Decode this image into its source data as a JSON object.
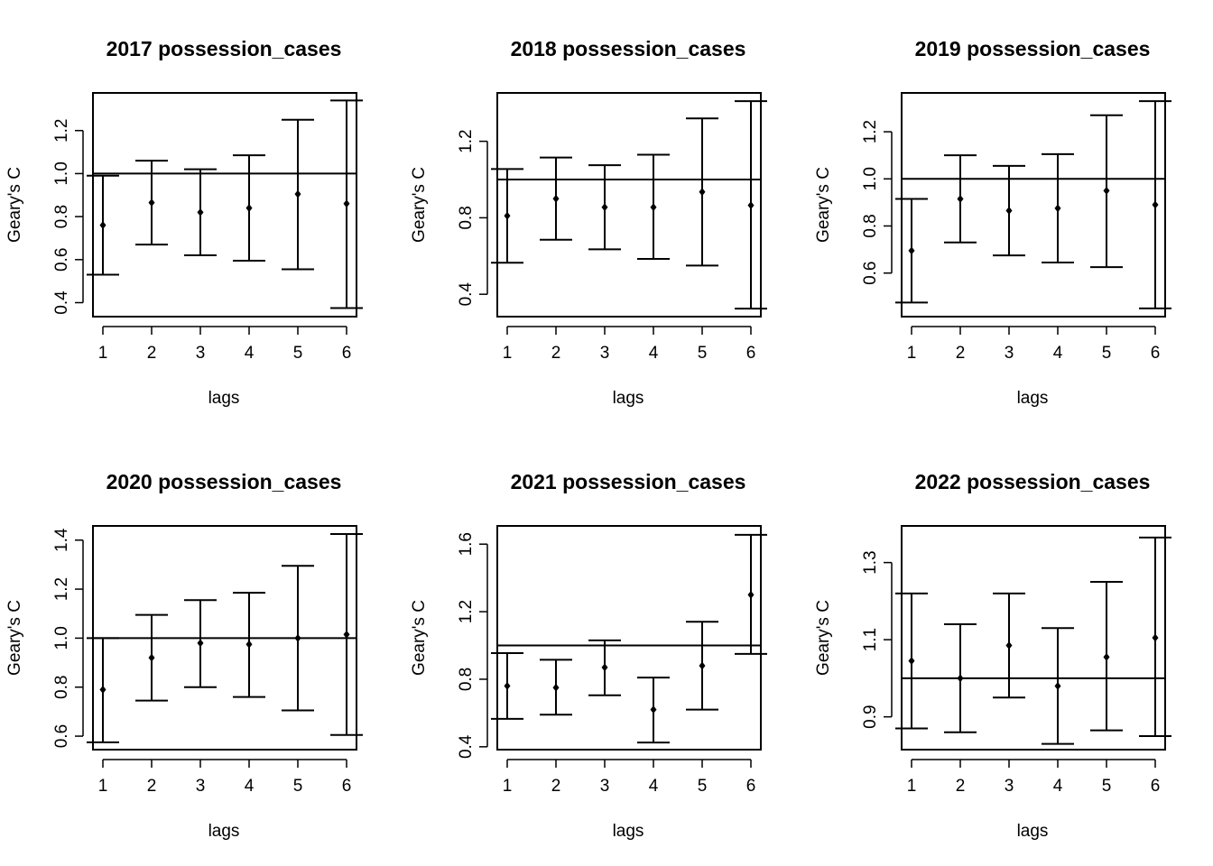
{
  "chart_data": [
    {
      "type": "errorbar",
      "title": "2017 possession_cases",
      "xlabel": "lags",
      "ylabel": "Geary's C",
      "categories": [
        "1",
        "2",
        "3",
        "4",
        "5",
        "6"
      ],
      "x": [
        1,
        2,
        3,
        4,
        5,
        6
      ],
      "values": [
        0.76,
        0.865,
        0.82,
        0.84,
        0.905,
        0.86
      ],
      "lower": [
        0.53,
        0.67,
        0.62,
        0.595,
        0.555,
        0.375
      ],
      "upper": [
        0.99,
        1.06,
        1.02,
        1.085,
        1.25,
        1.34
      ],
      "reference": 1.0,
      "yticks": [
        0.4,
        0.6,
        0.8,
        1.0,
        1.2
      ],
      "ytick_labels": [
        "0.4",
        "0.6",
        "0.8",
        "1.0",
        "1.2"
      ],
      "ylim": [
        0.335,
        1.375
      ]
    },
    {
      "type": "errorbar",
      "title": "2018 possession_cases",
      "xlabel": "lags",
      "ylabel": "Geary's C",
      "categories": [
        "1",
        "2",
        "3",
        "4",
        "5",
        "6"
      ],
      "x": [
        1,
        2,
        3,
        4,
        5,
        6
      ],
      "values": [
        0.81,
        0.9,
        0.855,
        0.855,
        0.935,
        0.865
      ],
      "lower": [
        0.565,
        0.685,
        0.635,
        0.585,
        0.55,
        0.325
      ],
      "upper": [
        1.055,
        1.115,
        1.075,
        1.13,
        1.32,
        1.41
      ],
      "reference": 1.0,
      "yticks": [
        0.4,
        0.8,
        1.2
      ],
      "ytick_labels": [
        "0.4",
        "0.8",
        "1.2"
      ],
      "ylim": [
        0.283,
        1.453
      ]
    },
    {
      "type": "errorbar",
      "title": "2019 possession_cases",
      "xlabel": "lags",
      "ylabel": "Geary's C",
      "categories": [
        "1",
        "2",
        "3",
        "4",
        "5",
        "6"
      ],
      "x": [
        1,
        2,
        3,
        4,
        5,
        6
      ],
      "values": [
        0.695,
        0.915,
        0.865,
        0.875,
        0.95,
        0.89
      ],
      "lower": [
        0.475,
        0.73,
        0.675,
        0.645,
        0.625,
        0.45
      ],
      "upper": [
        0.915,
        1.1,
        1.055,
        1.105,
        1.27,
        1.33
      ],
      "reference": 1.0,
      "yticks": [
        0.6,
        0.8,
        1.0,
        1.2
      ],
      "ytick_labels": [
        "0.6",
        "0.8",
        "1.0",
        "1.2"
      ],
      "ylim": [
        0.415,
        1.365
      ]
    },
    {
      "type": "errorbar",
      "title": "2020 possession_cases",
      "xlabel": "lags",
      "ylabel": "Geary's C",
      "categories": [
        "1",
        "2",
        "3",
        "4",
        "5",
        "6"
      ],
      "x": [
        1,
        2,
        3,
        4,
        5,
        6
      ],
      "values": [
        0.79,
        0.92,
        0.98,
        0.975,
        1.0,
        1.015
      ],
      "lower": [
        0.575,
        0.745,
        0.8,
        0.76,
        0.705,
        0.605
      ],
      "upper": [
        1.0,
        1.095,
        1.155,
        1.185,
        1.295,
        1.425
      ],
      "reference": 1.0,
      "yticks": [
        0.6,
        0.8,
        1.0,
        1.2,
        1.4
      ],
      "ytick_labels": [
        "0.6",
        "0.8",
        "1.0",
        "1.2",
        "1.4"
      ],
      "ylim": [
        0.545,
        1.458
      ]
    },
    {
      "type": "errorbar",
      "title": "2021 possession_cases",
      "xlabel": "lags",
      "ylabel": "Geary's C",
      "categories": [
        "1",
        "2",
        "3",
        "4",
        "5",
        "6"
      ],
      "x": [
        1,
        2,
        3,
        4,
        5,
        6
      ],
      "values": [
        0.76,
        0.75,
        0.87,
        0.62,
        0.88,
        1.3
      ],
      "lower": [
        0.565,
        0.59,
        0.705,
        0.425,
        0.62,
        0.95
      ],
      "upper": [
        0.955,
        0.915,
        1.03,
        0.81,
        1.14,
        1.655
      ],
      "reference": 1.0,
      "yticks": [
        0.4,
        0.8,
        1.2,
        1.6
      ],
      "ytick_labels": [
        "0.4",
        "0.8",
        "1.2",
        "1.6"
      ],
      "ylim": [
        0.383,
        1.708
      ]
    },
    {
      "type": "errorbar",
      "title": "2022 possession_cases",
      "xlabel": "lags",
      "ylabel": "Geary's C",
      "categories": [
        "1",
        "2",
        "3",
        "4",
        "5",
        "6"
      ],
      "x": [
        1,
        2,
        3,
        4,
        5,
        6
      ],
      "values": [
        1.045,
        1.0,
        1.085,
        0.98,
        1.055,
        1.105
      ],
      "lower": [
        0.87,
        0.86,
        0.95,
        0.83,
        0.865,
        0.85
      ],
      "upper": [
        1.22,
        1.14,
        1.22,
        1.13,
        1.25,
        1.365
      ],
      "reference": 1.0,
      "yticks": [
        0.9,
        1.1,
        1.3
      ],
      "ytick_labels": [
        "0.9",
        "1.1",
        "1.3"
      ],
      "ylim": [
        0.815,
        1.395
      ]
    }
  ]
}
